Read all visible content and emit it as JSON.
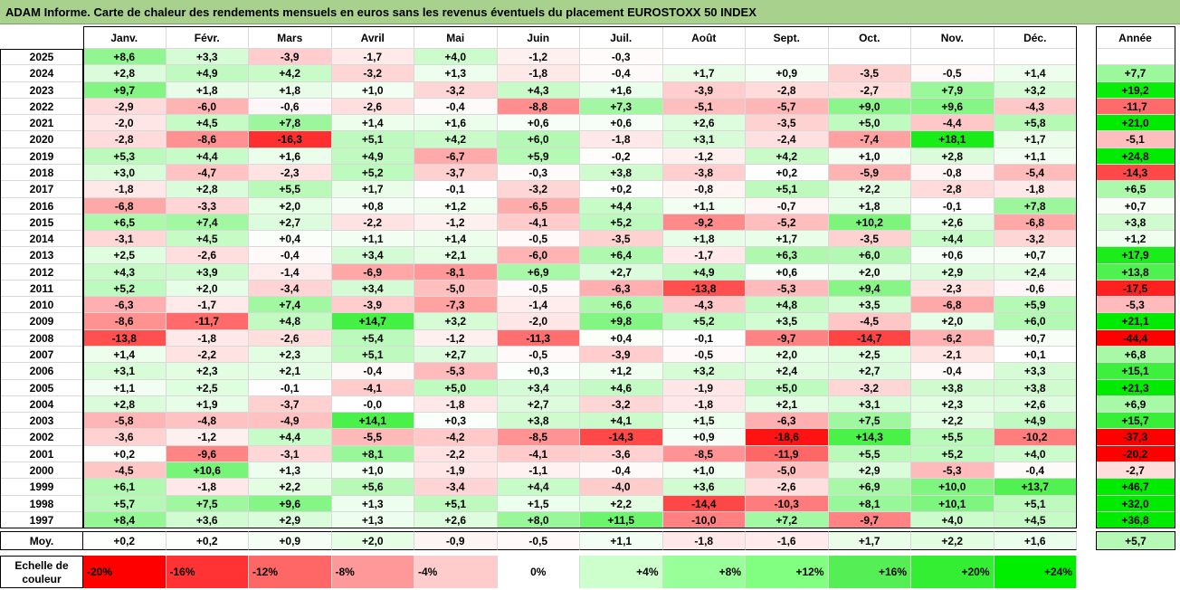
{
  "title": "ADAM Informe. Carte de chaleur des rendements mensuels en euros sans les revenus éventuels du placement EUROSTOXX 50 INDEX",
  "months": [
    "Janv.",
    "Févr.",
    "Mars",
    "Avril",
    "Mai",
    "Juin",
    "Juil.",
    "Août",
    "Sept.",
    "Oct.",
    "Nov.",
    "Déc."
  ],
  "year_column_label": "Année",
  "rows": [
    {
      "year": "2025",
      "values": [
        "+8,6",
        "+3,3",
        "-3,9",
        "-1,7",
        "+4,0",
        "-1,2",
        "-0,3",
        "",
        "",
        "",
        "",
        ""
      ],
      "annual": ""
    },
    {
      "year": "2024",
      "values": [
        "+2,8",
        "+4,9",
        "+4,2",
        "-3,2",
        "+1,3",
        "-1,8",
        "-0,4",
        "+1,7",
        "+0,9",
        "-3,5",
        "-0,5",
        "+1,4"
      ],
      "annual": "+7,7"
    },
    {
      "year": "2023",
      "values": [
        "+9,7",
        "+1,8",
        "+1,8",
        "+1,0",
        "-3,2",
        "+4,3",
        "+1,6",
        "-3,9",
        "-2,8",
        "-2,7",
        "+7,9",
        "+3,2"
      ],
      "annual": "+19,2"
    },
    {
      "year": "2022",
      "values": [
        "-2,9",
        "-6,0",
        "-0,6",
        "-2,6",
        "-0,4",
        "-8,8",
        "+7,3",
        "-5,1",
        "-5,7",
        "+9,0",
        "+9,6",
        "-4,3"
      ],
      "annual": "-11,7"
    },
    {
      "year": "2021",
      "values": [
        "-2,0",
        "+4,5",
        "+7,8",
        "+1,4",
        "+1,6",
        "+0,6",
        "+0,6",
        "+2,6",
        "-3,5",
        "+5,0",
        "-4,4",
        "+5,8"
      ],
      "annual": "+21,0"
    },
    {
      "year": "2020",
      "values": [
        "-2,8",
        "-8,6",
        "-16,3",
        "+5,1",
        "+4,2",
        "+6,0",
        "-1,8",
        "+3,1",
        "-2,4",
        "-7,4",
        "+18,1",
        "+1,7"
      ],
      "annual": "-5,1"
    },
    {
      "year": "2019",
      "values": [
        "+5,3",
        "+4,4",
        "+1,6",
        "+4,9",
        "-6,7",
        "+5,9",
        "-0,2",
        "-1,2",
        "+4,2",
        "+1,0",
        "+2,8",
        "+1,1"
      ],
      "annual": "+24,8"
    },
    {
      "year": "2018",
      "values": [
        "+3,0",
        "-4,7",
        "-2,3",
        "+5,2",
        "-3,7",
        "-0,3",
        "+3,8",
        "-3,8",
        "+0,2",
        "-5,9",
        "-0,8",
        "-5,4"
      ],
      "annual": "-14,3"
    },
    {
      "year": "2017",
      "values": [
        "-1,8",
        "+2,8",
        "+5,5",
        "+1,7",
        "-0,1",
        "-3,2",
        "+0,2",
        "-0,8",
        "+5,1",
        "+2,2",
        "-2,8",
        "-1,8"
      ],
      "annual": "+6,5"
    },
    {
      "year": "2016",
      "values": [
        "-6,8",
        "-3,3",
        "+2,0",
        "+0,8",
        "+1,2",
        "-6,5",
        "+4,4",
        "+1,1",
        "-0,7",
        "+1,8",
        "-0,1",
        "+7,8"
      ],
      "annual": "+0,7"
    },
    {
      "year": "2015",
      "values": [
        "+6,5",
        "+7,4",
        "+2,7",
        "-2,2",
        "-1,2",
        "-4,1",
        "+5,2",
        "-9,2",
        "-5,2",
        "+10,2",
        "+2,6",
        "-6,8"
      ],
      "annual": "+3,8"
    },
    {
      "year": "2014",
      "values": [
        "-3,1",
        "+4,5",
        "+0,4",
        "+1,1",
        "+1,4",
        "-0,5",
        "-3,5",
        "+1,8",
        "+1,7",
        "-3,5",
        "+4,4",
        "-3,2"
      ],
      "annual": "+1,2"
    },
    {
      "year": "2013",
      "values": [
        "+2,5",
        "-2,6",
        "-0,4",
        "+3,4",
        "+2,1",
        "-6,0",
        "+6,4",
        "-1,7",
        "+6,3",
        "+6,0",
        "+0,6",
        "+0,7"
      ],
      "annual": "+17,9"
    },
    {
      "year": "2012",
      "values": [
        "+4,3",
        "+3,9",
        "-1,4",
        "-6,9",
        "-8,1",
        "+6,9",
        "+2,7",
        "+4,9",
        "+0,6",
        "+2,0",
        "+2,9",
        "+2,4"
      ],
      "annual": "+13,8"
    },
    {
      "year": "2011",
      "values": [
        "+5,2",
        "+2,0",
        "-3,4",
        "+3,4",
        "-5,0",
        "-0,5",
        "-6,3",
        "-13,8",
        "-5,3",
        "+9,4",
        "-2,3",
        "-0,6"
      ],
      "annual": "-17,5"
    },
    {
      "year": "2010",
      "values": [
        "-6,3",
        "-1,7",
        "+7,4",
        "-3,9",
        "-7,3",
        "-1,4",
        "+6,6",
        "-4,3",
        "+4,8",
        "+3,5",
        "-6,8",
        "+5,9"
      ],
      "annual": "-5,3"
    },
    {
      "year": "2009",
      "values": [
        "-8,6",
        "-11,7",
        "+4,8",
        "+14,7",
        "+3,2",
        "-2,0",
        "+9,8",
        "+5,2",
        "+3,5",
        "-4,5",
        "+2,0",
        "+6,0"
      ],
      "annual": "+21,1"
    },
    {
      "year": "2008",
      "values": [
        "-13,8",
        "-1,8",
        "-2,6",
        "+5,4",
        "-1,2",
        "-11,3",
        "+0,4",
        "-0,1",
        "-9,7",
        "-14,7",
        "-6,2",
        "+0,7"
      ],
      "annual": "-44,4"
    },
    {
      "year": "2007",
      "values": [
        "+1,4",
        "-2,2",
        "+2,3",
        "+5,1",
        "+2,7",
        "-0,5",
        "-3,9",
        "-0,5",
        "+2,0",
        "+2,5",
        "-2,1",
        "+0,1"
      ],
      "annual": "+6,8"
    },
    {
      "year": "2006",
      "values": [
        "+3,1",
        "+2,3",
        "+2,1",
        "-0,4",
        "-5,3",
        "+0,3",
        "+1,2",
        "+3,2",
        "+2,4",
        "+2,7",
        "-0,4",
        "+3,3"
      ],
      "annual": "+15,1"
    },
    {
      "year": "2005",
      "values": [
        "+1,1",
        "+2,5",
        "-0,1",
        "-4,1",
        "+5,0",
        "+3,4",
        "+4,6",
        "-1,9",
        "+5,0",
        "-3,2",
        "+3,8",
        "+3,8"
      ],
      "annual": "+21,3"
    },
    {
      "year": "2004",
      "values": [
        "+2,8",
        "+1,9",
        "-3,7",
        "-0,0",
        "-1,8",
        "+2,7",
        "-3,2",
        "-1,8",
        "+2,1",
        "+3,1",
        "+2,3",
        "+2,6"
      ],
      "annual": "+6,9"
    },
    {
      "year": "2003",
      "values": [
        "-5,8",
        "-4,8",
        "-4,9",
        "+14,1",
        "+0,3",
        "+3,8",
        "+4,1",
        "+1,5",
        "-6,3",
        "+7,5",
        "+2,2",
        "+4,9"
      ],
      "annual": "+15,7"
    },
    {
      "year": "2002",
      "values": [
        "-3,6",
        "-1,2",
        "+4,4",
        "-5,5",
        "-4,2",
        "-8,5",
        "-14,3",
        "+0,9",
        "-18,6",
        "+14,3",
        "+5,5",
        "-10,2"
      ],
      "annual": "-37,3"
    },
    {
      "year": "2001",
      "values": [
        "+0,2",
        "-9,6",
        "-3,1",
        "+8,1",
        "-2,2",
        "-4,1",
        "-3,6",
        "-8,5",
        "-11,9",
        "+5,5",
        "+5,2",
        "+4,0"
      ],
      "annual": "-20,2"
    },
    {
      "year": "2000",
      "values": [
        "-4,5",
        "+10,6",
        "+1,3",
        "+1,0",
        "-1,9",
        "-1,1",
        "-0,4",
        "+1,0",
        "-5,0",
        "+2,9",
        "-5,3",
        "-0,4"
      ],
      "annual": "-2,7"
    },
    {
      "year": "1999",
      "values": [
        "+6,1",
        "-1,8",
        "+2,2",
        "+5,6",
        "-3,4",
        "+4,4",
        "-4,0",
        "+3,6",
        "-2,6",
        "+6,9",
        "+10,0",
        "+13,7"
      ],
      "annual": "+46,7"
    },
    {
      "year": "1998",
      "values": [
        "+5,7",
        "+7,5",
        "+9,6",
        "+1,3",
        "+5,1",
        "+1,5",
        "+2,2",
        "-14,4",
        "-10,3",
        "+8,1",
        "+10,1",
        "+5,1"
      ],
      "annual": "+32,0"
    },
    {
      "year": "1997",
      "values": [
        "+8,4",
        "+3,6",
        "+2,9",
        "+1,3",
        "+2,6",
        "+8,0",
        "+11,5",
        "-10,0",
        "+7,2",
        "-9,7",
        "+4,0",
        "+4,5"
      ],
      "annual": "+36,8"
    }
  ],
  "average": {
    "label": "Moy.",
    "values": [
      "+0,2",
      "+0,2",
      "+0,9",
      "+2,0",
      "-0,9",
      "-0,5",
      "+1,1",
      "-1,8",
      "-1,6",
      "+1,7",
      "+2,2",
      "+1,6"
    ],
    "annual": "+5,7"
  },
  "scale": {
    "label_line1": "Echelle de",
    "label_line2": "couleur",
    "steps": [
      {
        "label": "-20%",
        "color": "#ff0000"
      },
      {
        "label": "-16%",
        "color": "#ff3333"
      },
      {
        "label": "-12%",
        "color": "#ff6666"
      },
      {
        "label": "-8%",
        "color": "#ff9999"
      },
      {
        "label": "-4%",
        "color": "#ffcccc"
      },
      {
        "label": "0%",
        "color": "#ffffff"
      },
      {
        "label": "+4%",
        "color": "#ccffcc"
      },
      {
        "label": "+8%",
        "color": "#99ff99"
      },
      {
        "label": "+12%",
        "color": "#80ff80"
      },
      {
        "label": "+16%",
        "color": "#55ee55"
      },
      {
        "label": "+20%",
        "color": "#33ee33"
      },
      {
        "label": "+24%",
        "color": "#00ee00"
      }
    ]
  }
}
